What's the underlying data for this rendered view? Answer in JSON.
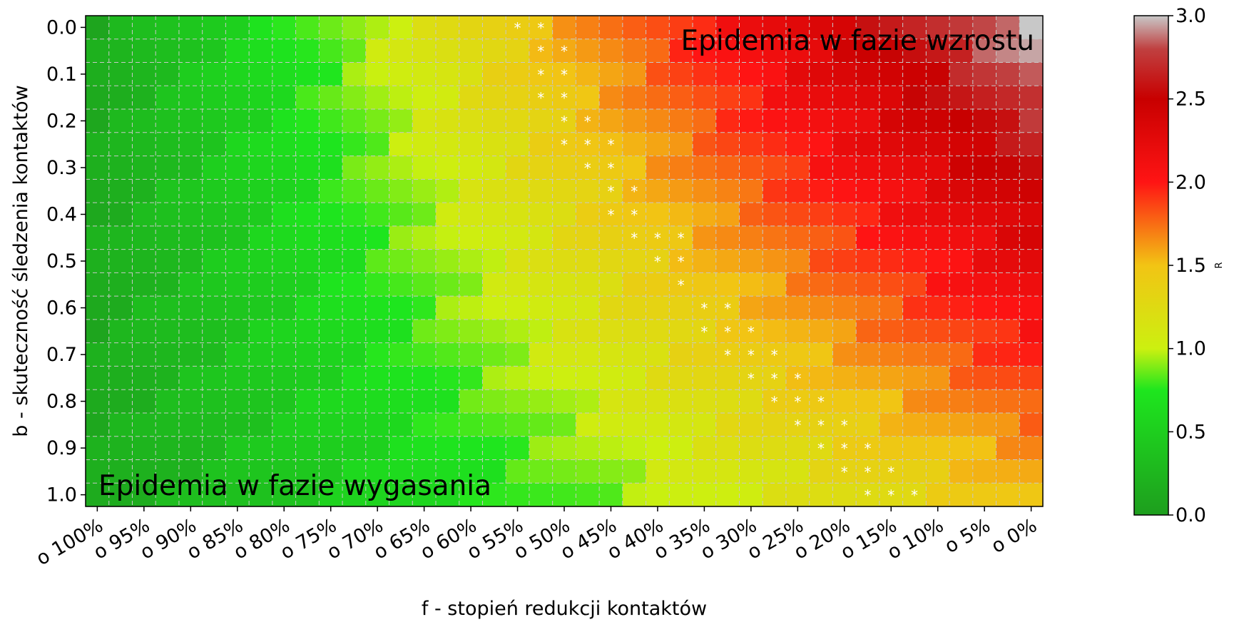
{
  "chart_data": {
    "type": "heatmap",
    "xlabel": "f - stopień redukcji kontaktów",
    "ylabel": "b - skuteczność śledzenia kontaktów",
    "x_tick_labels": [
      "o 100%",
      "o 95%",
      "o 90%",
      "o 85%",
      "o 80%",
      "o 75%",
      "o 70%",
      "o 65%",
      "o 60%",
      "o 55%",
      "o 50%",
      "o 45%",
      "o 40%",
      "o 35%",
      "o 30%",
      "o 25%",
      "o 20%",
      "o 15%",
      "o 10%",
      "o 5%",
      "o 0%"
    ],
    "y_tick_labels": [
      "0.0",
      "0.1",
      "0.2",
      "0.3",
      "0.4",
      "0.5",
      "0.6",
      "0.7",
      "0.8",
      "0.9",
      "1.0"
    ],
    "annotations": [
      "Epidemia w fazie wzrostu",
      "Epidemia w fazie wygasania"
    ],
    "colorbar": {
      "label": "R",
      "range": [
        0,
        3
      ],
      "ticks": [
        "0.0",
        "0.5",
        "1.0",
        "1.5",
        "2.0",
        "2.5",
        "3.0"
      ],
      "colors": [
        [
          0,
          "#1e9e1e"
        ],
        [
          0.75,
          "#1ee61e"
        ],
        [
          1.0,
          "#ccf010"
        ],
        [
          1.5,
          "#f2c414"
        ],
        [
          2.0,
          "#ff1414"
        ],
        [
          2.5,
          "#c80000"
        ],
        [
          2.8,
          "#c04040"
        ],
        [
          3.0,
          "#c8c8c8"
        ]
      ]
    },
    "marker": "*",
    "marker_note_cells": [
      [
        0,
        18
      ],
      [
        0,
        19
      ],
      [
        1,
        19
      ],
      [
        1,
        20
      ],
      [
        2,
        19
      ],
      [
        2,
        20
      ],
      [
        3,
        19
      ],
      [
        3,
        20
      ],
      [
        4,
        20
      ],
      [
        4,
        21
      ],
      [
        5,
        20
      ],
      [
        5,
        21
      ],
      [
        5,
        22
      ],
      [
        6,
        21
      ],
      [
        6,
        22
      ],
      [
        7,
        22
      ],
      [
        7,
        23
      ],
      [
        8,
        22
      ],
      [
        8,
        23
      ],
      [
        9,
        23
      ],
      [
        9,
        24
      ],
      [
        9,
        25
      ],
      [
        10,
        24
      ],
      [
        10,
        25
      ],
      [
        11,
        25
      ],
      [
        12,
        26
      ],
      [
        12,
        27
      ],
      [
        13,
        26
      ],
      [
        13,
        27
      ],
      [
        13,
        28
      ],
      [
        14,
        27
      ],
      [
        14,
        28
      ],
      [
        14,
        29
      ],
      [
        15,
        28
      ],
      [
        15,
        29
      ],
      [
        15,
        30
      ],
      [
        16,
        29
      ],
      [
        16,
        30
      ],
      [
        16,
        31
      ],
      [
        17,
        30
      ],
      [
        17,
        31
      ],
      [
        17,
        32
      ],
      [
        18,
        31
      ],
      [
        18,
        32
      ],
      [
        18,
        33
      ],
      [
        19,
        32
      ],
      [
        19,
        33
      ],
      [
        19,
        34
      ],
      [
        20,
        33
      ],
      [
        20,
        34
      ],
      [
        20,
        35
      ]
    ],
    "x_range": [
      1.0,
      0.0
    ],
    "y_range": [
      0.0,
      1.0
    ],
    "grid": true
  }
}
